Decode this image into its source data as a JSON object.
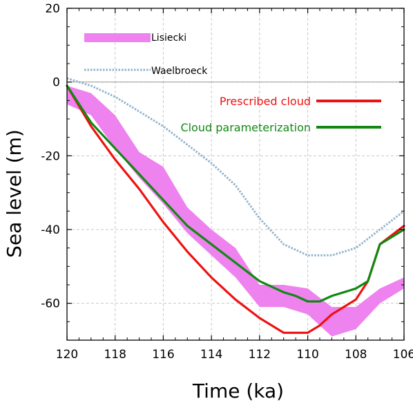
{
  "chart_data": {
    "type": "line",
    "xlabel": "Time (ka)",
    "ylabel": "Sea level (m)",
    "xlim": [
      120,
      106
    ],
    "ylim": [
      -70,
      20
    ],
    "x_reversed": true,
    "xticks": [
      120,
      118,
      116,
      114,
      112,
      110,
      108,
      106
    ],
    "yticks": [
      20,
      0,
      -20,
      -40,
      -60
    ],
    "grid": true,
    "zero_line": true,
    "legend_placement": "top-left and top-right (in-plot labels)",
    "series": [
      {
        "name": "Lisiecki",
        "kind": "band",
        "color": "#ee82ee",
        "x": [
          120,
          119,
          118,
          117,
          116,
          115,
          114,
          113,
          112,
          111,
          110,
          109,
          108,
          107,
          106
        ],
        "lower": [
          -6,
          -9,
          -18,
          -26,
          -33,
          -41,
          -47,
          -53,
          -61,
          -61,
          -63,
          -69,
          -67,
          -60,
          -56
        ],
        "upper": [
          -1,
          -3,
          -9,
          -19,
          -23,
          -34,
          -40,
          -45,
          -55,
          -55,
          -56,
          -61,
          -61,
          -56,
          -53
        ]
      },
      {
        "name": "Waelbroeck",
        "kind": "line",
        "color": "#92b3cc",
        "dash": "dotted",
        "x": [
          120,
          119,
          118,
          117,
          116,
          115,
          114,
          113,
          112,
          111,
          110,
          109,
          108,
          107,
          106
        ],
        "y": [
          1,
          -1,
          -4,
          -8,
          -12,
          -17,
          -22,
          -28,
          -37,
          -44,
          -47,
          -47,
          -45,
          -40,
          -35
        ]
      },
      {
        "name": "Prescribed cloud",
        "kind": "line",
        "color": "#ee1111",
        "x": [
          120,
          119,
          118,
          117,
          116,
          115,
          114,
          113,
          112,
          111,
          110.5,
          110,
          109.5,
          109,
          108,
          107.5,
          107,
          106
        ],
        "y": [
          -1,
          -12,
          -21,
          -29,
          -38,
          -46,
          -53,
          -59,
          -64,
          -68,
          -68,
          -68,
          -66,
          -63,
          -59,
          -54,
          -44,
          -39
        ]
      },
      {
        "name": "Cloud parameterization",
        "kind": "line",
        "color": "#118811",
        "x": [
          120,
          119,
          118,
          117,
          116,
          115,
          114,
          113,
          112,
          111,
          110.5,
          110,
          109.5,
          109,
          108.5,
          108,
          107.5,
          107,
          106
        ],
        "y": [
          -1,
          -11,
          -18,
          -25,
          -32,
          -39,
          -44,
          -49,
          -54,
          -57,
          -58,
          -59.5,
          -59.5,
          -58,
          -57,
          -56,
          -54,
          -44,
          -40
        ]
      }
    ]
  }
}
